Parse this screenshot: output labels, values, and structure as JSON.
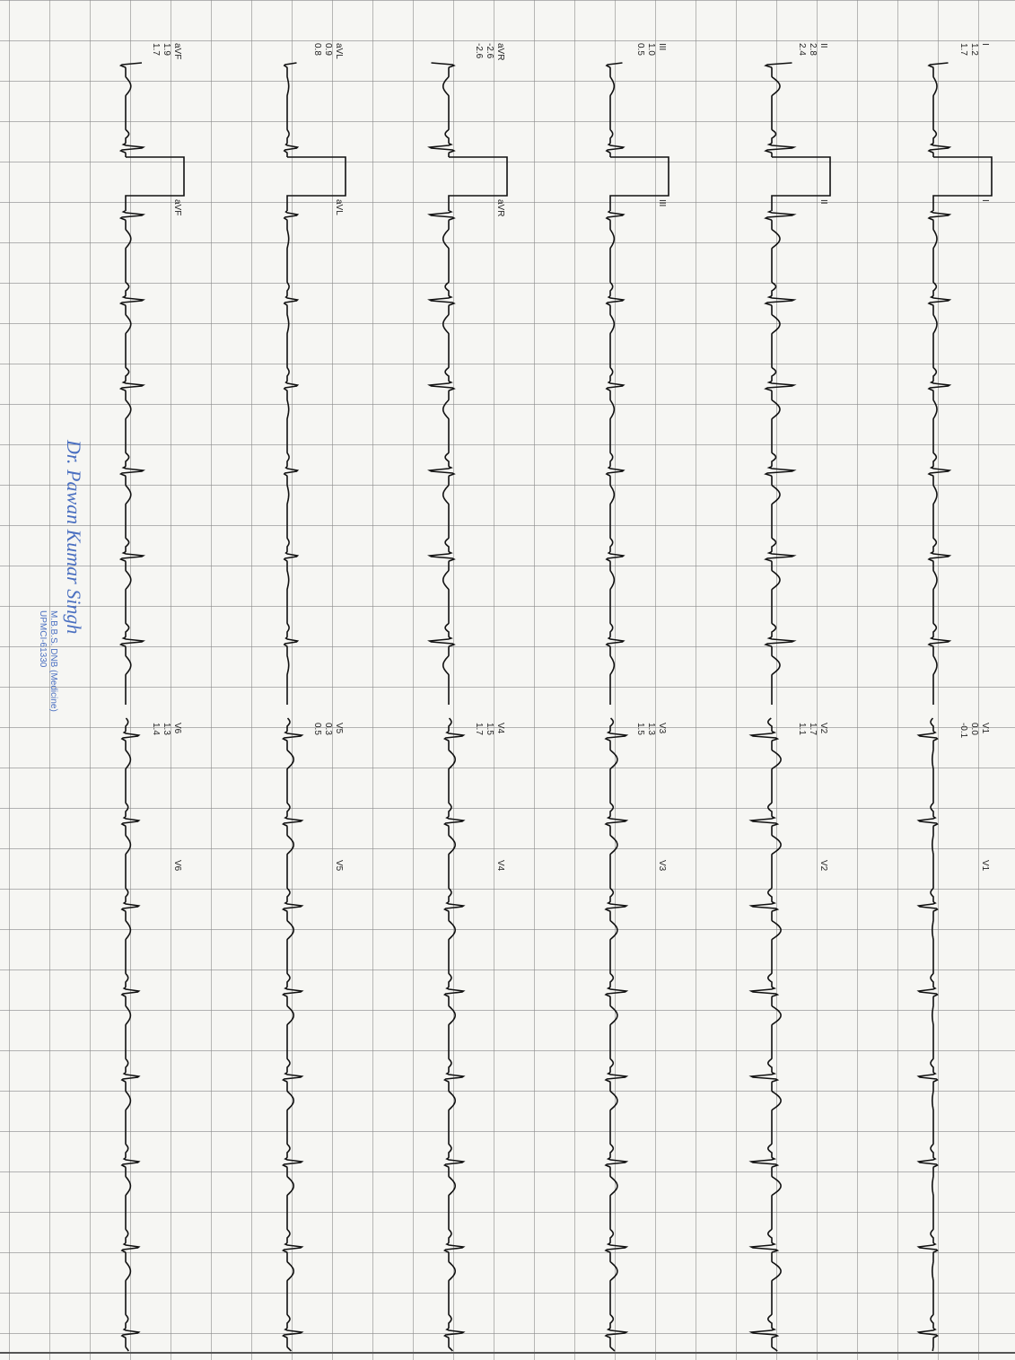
{
  "limb_leads": [
    {
      "name": "I",
      "values": [
        "1.2",
        "1.7"
      ]
    },
    {
      "name": "II",
      "values": [
        "2.8",
        "2.4"
      ]
    },
    {
      "name": "III",
      "values": [
        "1.0",
        "0.5"
      ]
    },
    {
      "name": "aVR",
      "values": [
        "-2.6",
        "-2.6"
      ]
    },
    {
      "name": "aVL",
      "values": [
        "0.9",
        "0.8"
      ]
    },
    {
      "name": "aVF",
      "values": [
        "1.9",
        "1.7"
      ]
    }
  ],
  "chest_leads": [
    {
      "name": "V1",
      "values": [
        "0.0",
        "-0.1"
      ]
    },
    {
      "name": "V2",
      "values": [
        "1.7",
        "1.1"
      ]
    },
    {
      "name": "V3",
      "values": [
        "1.3",
        "1.5"
      ]
    },
    {
      "name": "V4",
      "values": [
        "1.5",
        "1.7"
      ]
    },
    {
      "name": "V5",
      "values": [
        "0.3",
        "0.5"
      ]
    },
    {
      "name": "V6",
      "values": [
        "1.3",
        "1.4"
      ]
    }
  ],
  "signature": {
    "name": "Dr. Pawan Kumar Singh",
    "qualification": "M.B.B.S. DNB (Medicine)",
    "registration": "UPMCI-61330"
  }
}
